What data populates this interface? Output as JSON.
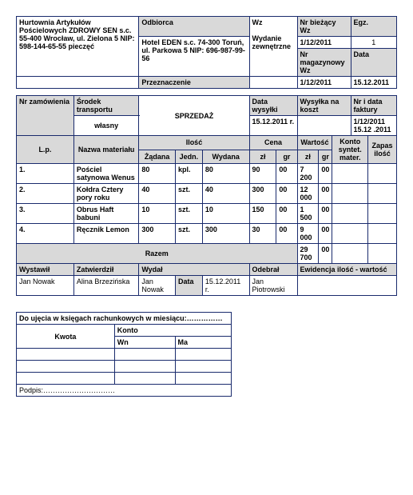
{
  "top": {
    "supplier": "Hurtownia Artykułów Pościelowych ZDROWY SEN s.c. 55-400 Wrocław, ul. Zielona 5 NIP: 598-144-65-55 pieczęć",
    "odbiorca_hdr": "Odbiorca",
    "odbiorca": "Hotel EDEN s.c. 74-300 Toruń, ul. Parkowa 5 NIP: 696-987-99-56",
    "przeznaczenie_hdr": "Przeznaczenie",
    "wz": "Wz",
    "wydanie": "Wydanie zewnętrzne",
    "nr_biezacy_hdr": "Nr bieżący Wz",
    "nr_biezacy": "1/12/2011",
    "nr_mag_hdr": "Nr magazynowy Wz",
    "nr_mag": "1/12/2011",
    "egz_hdr": "Egz.",
    "egz": "1",
    "data_hdr": "Data",
    "data": "15.12.2011"
  },
  "mid": {
    "nr_zam_hdr": "Nr zamówienia",
    "srodek_hdr": "Środek transportu",
    "srodek": "własny",
    "sprzedaz": "SPRZEDAŻ",
    "data_wys_hdr": "Data wysyłki",
    "data_wys": "15.12.2011 r.",
    "wysylka_hdr": "Wysyłka na koszt",
    "nrdata_hdr": "Nr i data faktury",
    "nrdata": "1/12/2011 15.12 .2011"
  },
  "cols": {
    "lp": "L.p.",
    "nazwa": "Nazwa materiału",
    "ilosc": "Ilość",
    "zadana": "Żądana",
    "jedn": "Jedn.",
    "wydana": "Wydana",
    "cena": "Cena",
    "wartosc": "Wartość",
    "konto": "Konto syntet. mater.",
    "zapas": "Zapas ilość",
    "zl": "zł",
    "gr": "gr"
  },
  "rows": [
    {
      "lp": "1.",
      "n": "Pościel satynowa Wenus",
      "z": "80",
      "j": "kpl.",
      "w": "80",
      "czl": "90",
      "cgr": "00",
      "wzl": "7 200",
      "wgr": "00"
    },
    {
      "lp": "2.",
      "n": "Kołdra Cztery pory roku",
      "z": "40",
      "j": "szt.",
      "w": "40",
      "czl": "300",
      "cgr": "00",
      "wzl": "12 000",
      "wgr": "00"
    },
    {
      "lp": "3.",
      "n": "Obrus Haft babuni",
      "z": "10",
      "j": "szt.",
      "w": "10",
      "czl": "150",
      "cgr": "00",
      "wzl": "1 500",
      "wgr": "00"
    },
    {
      "lp": "4.",
      "n": "Ręcznik Lemon",
      "z": "300",
      "j": "szt.",
      "w": "300",
      "czl": "30",
      "cgr": "00",
      "wzl": "9 000",
      "wgr": "00"
    }
  ],
  "razem_lbl": "Razem",
  "razem_zl": "29 700",
  "razem_gr": "00",
  "sig": {
    "wystawil_h": "Wystawił",
    "zatw_h": "Zatwierdził",
    "wydal_h": "Wydał",
    "data_h": "Data",
    "odebral_h": "Odebrał",
    "ewid_h": "Ewidencja ilość - wartość",
    "wystawil": "Jan Nowak",
    "zatw": "Alina Brzezińska",
    "wydal": "Jan Nowak",
    "data": "15.12.2011 r.",
    "odebral": "Jan Piotrowski"
  },
  "ledger": {
    "title": "Do ujęcia w księgach rachunkowych w miesiącu:",
    "kwota": "Kwota",
    "konto": "Konto",
    "wn": "Wn",
    "ma": "Ma",
    "podpis": "Podpis:"
  }
}
